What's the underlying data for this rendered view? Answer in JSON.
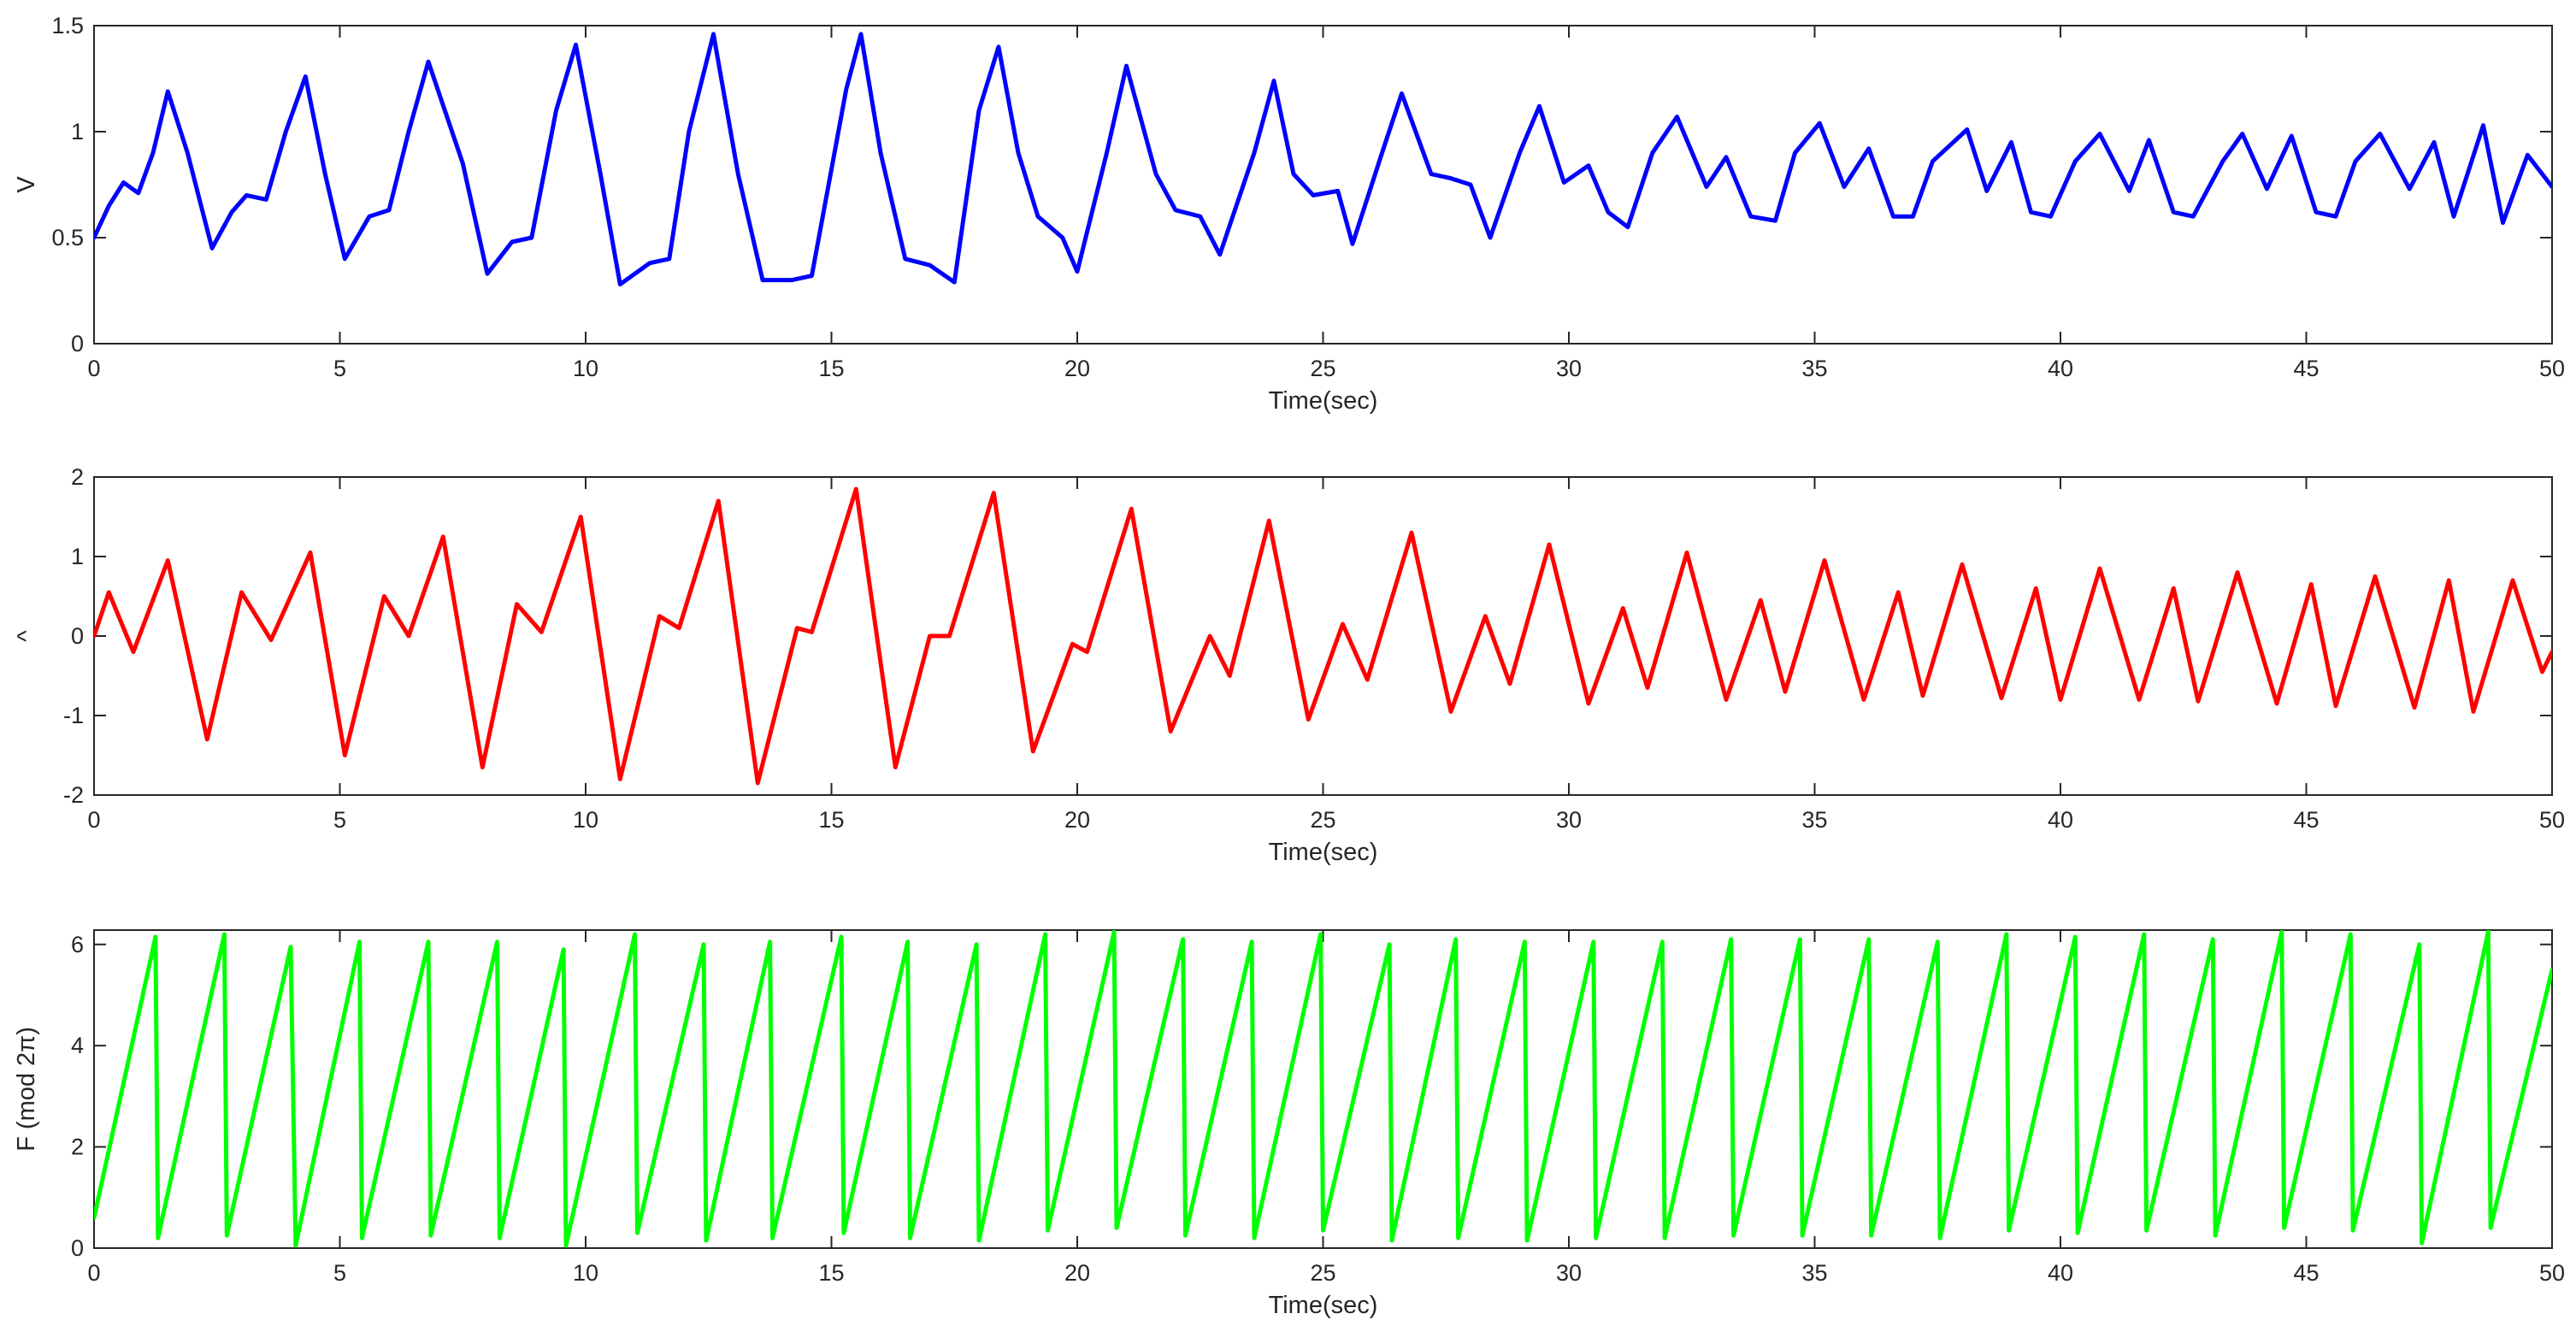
{
  "chart_data": [
    {
      "type": "line",
      "ylabel": "V",
      "xlabel": "Time(sec)",
      "xlim": [
        0,
        50
      ],
      "ylim": [
        0,
        1.5
      ],
      "xticks": [
        "0",
        "5",
        "10",
        "15",
        "20",
        "25",
        "30",
        "35",
        "40",
        "45",
        "50"
      ],
      "yticks": [
        "0",
        "0.5",
        "1",
        "1.5"
      ],
      "grid": false,
      "color": "#0000ff",
      "series": [
        {
          "x": [
            0,
            0.3,
            0.6,
            0.9,
            1.2,
            1.5,
            1.9,
            2.4,
            2.8,
            3.1,
            3.5,
            3.9,
            4.3,
            4.7,
            5.1,
            5.6,
            6.0,
            6.4,
            6.8,
            7.5,
            8.0,
            8.5,
            8.9,
            9.4,
            9.8,
            10.3,
            10.7,
            11.3,
            11.7,
            12.1,
            12.6,
            13.1,
            13.6,
            14.2,
            14.6,
            15.3,
            15.6,
            16.0,
            16.5,
            17.0,
            17.5,
            18.0,
            18.4,
            18.8,
            19.2,
            19.7,
            20.0,
            20.6,
            21.0,
            21.6,
            22.0,
            22.5,
            22.9,
            23.6,
            24.0,
            24.4,
            24.8,
            25.3,
            25.6,
            26.2,
            26.6,
            27.2,
            27.6,
            28.0,
            28.4,
            29.0,
            29.4,
            29.9,
            30.4,
            30.8,
            31.2,
            31.7,
            32.2,
            32.8,
            33.2,
            33.7,
            34.2,
            34.6,
            35.1,
            35.6,
            36.1,
            36.6,
            37.0,
            37.4,
            38.1,
            38.5,
            39.0,
            39.4,
            39.8,
            40.3,
            40.8,
            41.4,
            41.8,
            42.3,
            42.7,
            43.3,
            43.7,
            44.2,
            44.7,
            45.2,
            45.6,
            46.0,
            46.5,
            47.1,
            47.6,
            48.0,
            48.6,
            49.0,
            49.5,
            50.0
          ],
          "y": [
            0.5,
            0.65,
            0.76,
            0.71,
            0.9,
            1.19,
            0.9,
            0.45,
            0.62,
            0.7,
            0.68,
            1.0,
            1.26,
            0.8,
            0.4,
            0.6,
            0.63,
            1.0,
            1.33,
            0.85,
            0.33,
            0.48,
            0.5,
            1.1,
            1.41,
            0.8,
            0.28,
            0.38,
            0.4,
            1.0,
            1.46,
            0.8,
            0.3,
            0.3,
            0.32,
            1.2,
            1.46,
            0.9,
            0.4,
            0.37,
            0.29,
            1.1,
            1.4,
            0.9,
            0.6,
            0.5,
            0.34,
            0.9,
            1.31,
            0.8,
            0.63,
            0.6,
            0.42,
            0.9,
            1.24,
            0.8,
            0.7,
            0.72,
            0.47,
            0.9,
            1.18,
            0.8,
            0.78,
            0.75,
            0.5,
            0.9,
            1.12,
            0.76,
            0.84,
            0.62,
            0.55,
            0.9,
            1.07,
            0.74,
            0.88,
            0.6,
            0.58,
            0.9,
            1.04,
            0.74,
            0.92,
            0.6,
            0.6,
            0.86,
            1.01,
            0.72,
            0.95,
            0.62,
            0.6,
            0.86,
            0.99,
            0.72,
            0.96,
            0.62,
            0.6,
            0.86,
            0.99,
            0.73,
            0.98,
            0.62,
            0.6,
            0.86,
            0.99,
            0.73,
            0.95,
            0.6,
            1.03,
            0.57,
            0.89,
            0.74
          ]
        }
      ]
    },
    {
      "type": "line",
      "ylabel": "^",
      "xlabel": "Time(sec)",
      "xlim": [
        0,
        50
      ],
      "ylim": [
        -2,
        2
      ],
      "xticks": [
        "0",
        "5",
        "10",
        "15",
        "20",
        "25",
        "30",
        "35",
        "40",
        "45",
        "50"
      ],
      "yticks": [
        "-2",
        "-1",
        "0",
        "1",
        "2"
      ],
      "grid": false,
      "color": "#ff0000",
      "series": [
        {
          "x": [
            0,
            0.3,
            0.8,
            1.5,
            2.3,
            3.0,
            3.6,
            4.4,
            5.1,
            5.9,
            6.4,
            7.1,
            7.9,
            8.6,
            9.1,
            9.9,
            10.7,
            11.5,
            11.9,
            12.7,
            13.5,
            14.3,
            14.6,
            15.5,
            16.3,
            17.0,
            17.4,
            18.3,
            19.1,
            19.9,
            20.2,
            21.1,
            21.9,
            22.7,
            23.1,
            23.9,
            24.7,
            25.4,
            25.9,
            26.8,
            27.6,
            28.3,
            28.8,
            29.6,
            30.4,
            31.1,
            31.6,
            32.4,
            33.2,
            33.9,
            34.4,
            35.2,
            36.0,
            36.7,
            37.2,
            38.0,
            38.8,
            39.5,
            40.0,
            40.8,
            41.6,
            42.3,
            42.8,
            43.6,
            44.4,
            45.1,
            45.6,
            46.4,
            47.2,
            47.9,
            48.4,
            49.2,
            49.8,
            50.0
          ],
          "y": [
            0,
            0.55,
            -0.2,
            0.95,
            -1.3,
            0.55,
            -0.05,
            1.05,
            -1.5,
            0.5,
            0.0,
            1.25,
            -1.65,
            0.4,
            0.05,
            1.5,
            -1.8,
            0.25,
            0.1,
            1.7,
            -1.85,
            0.1,
            0.05,
            1.85,
            -1.65,
            0.0,
            0.0,
            1.8,
            -1.45,
            -0.1,
            -0.2,
            1.6,
            -1.2,
            0.0,
            -0.5,
            1.45,
            -1.05,
            0.15,
            -0.55,
            1.3,
            -0.95,
            0.25,
            -0.6,
            1.15,
            -0.85,
            0.35,
            -0.65,
            1.05,
            -0.8,
            0.45,
            -0.7,
            0.95,
            -0.8,
            0.55,
            -0.75,
            0.9,
            -0.78,
            0.6,
            -0.8,
            0.85,
            -0.8,
            0.6,
            -0.82,
            0.8,
            -0.85,
            0.65,
            -0.88,
            0.75,
            -0.9,
            0.7,
            -0.95,
            0.7,
            -0.45,
            -0.2
          ]
        }
      ]
    },
    {
      "type": "line",
      "ylabel": "F (mod 2π)",
      "xlabel": "Time(sec)",
      "xlim": [
        0,
        50
      ],
      "ylim": [
        0,
        6.283
      ],
      "xticks": [
        "0",
        "5",
        "10",
        "15",
        "20",
        "25",
        "30",
        "35",
        "40",
        "45",
        "50"
      ],
      "yticks": [
        "0",
        "2",
        "4",
        "6"
      ],
      "grid": false,
      "color": "#00ff00",
      "series": [
        {
          "x": [
            0,
            1.25,
            1.3,
            2.65,
            2.7,
            4.0,
            4.1,
            5.4,
            5.45,
            6.8,
            6.85,
            8.2,
            8.25,
            9.55,
            9.6,
            11.0,
            11.05,
            12.4,
            12.45,
            13.75,
            13.8,
            15.2,
            15.25,
            16.55,
            16.6,
            17.95,
            18.0,
            19.35,
            19.4,
            20.75,
            20.8,
            22.15,
            22.2,
            23.55,
            23.6,
            24.95,
            25.0,
            26.35,
            26.4,
            27.7,
            27.75,
            29.1,
            29.15,
            30.5,
            30.55,
            31.9,
            31.95,
            33.3,
            33.35,
            34.7,
            34.75,
            36.1,
            36.15,
            37.5,
            37.55,
            38.9,
            38.95,
            40.3,
            40.35,
            41.7,
            41.75,
            43.1,
            43.15,
            44.5,
            44.55,
            45.9,
            45.95,
            47.3,
            47.35,
            48.7,
            48.75,
            50.0
          ],
          "y": [
            0.6,
            6.15,
            0.2,
            6.2,
            0.25,
            5.95,
            0.05,
            6.05,
            0.2,
            6.05,
            0.25,
            6.05,
            0.2,
            5.9,
            0.05,
            6.2,
            0.3,
            6.0,
            0.15,
            6.05,
            0.2,
            6.15,
            0.3,
            6.05,
            0.2,
            6.0,
            0.15,
            6.2,
            0.35,
            6.25,
            0.4,
            6.1,
            0.25,
            6.05,
            0.2,
            6.2,
            0.35,
            6.0,
            0.15,
            6.1,
            0.2,
            6.05,
            0.15,
            6.05,
            0.2,
            6.05,
            0.2,
            6.1,
            0.25,
            6.1,
            0.25,
            6.1,
            0.25,
            6.05,
            0.2,
            6.2,
            0.35,
            6.15,
            0.3,
            6.2,
            0.35,
            6.1,
            0.25,
            6.25,
            0.4,
            6.2,
            0.35,
            6.0,
            0.1,
            6.25,
            0.4,
            5.5
          ]
        }
      ]
    }
  ]
}
